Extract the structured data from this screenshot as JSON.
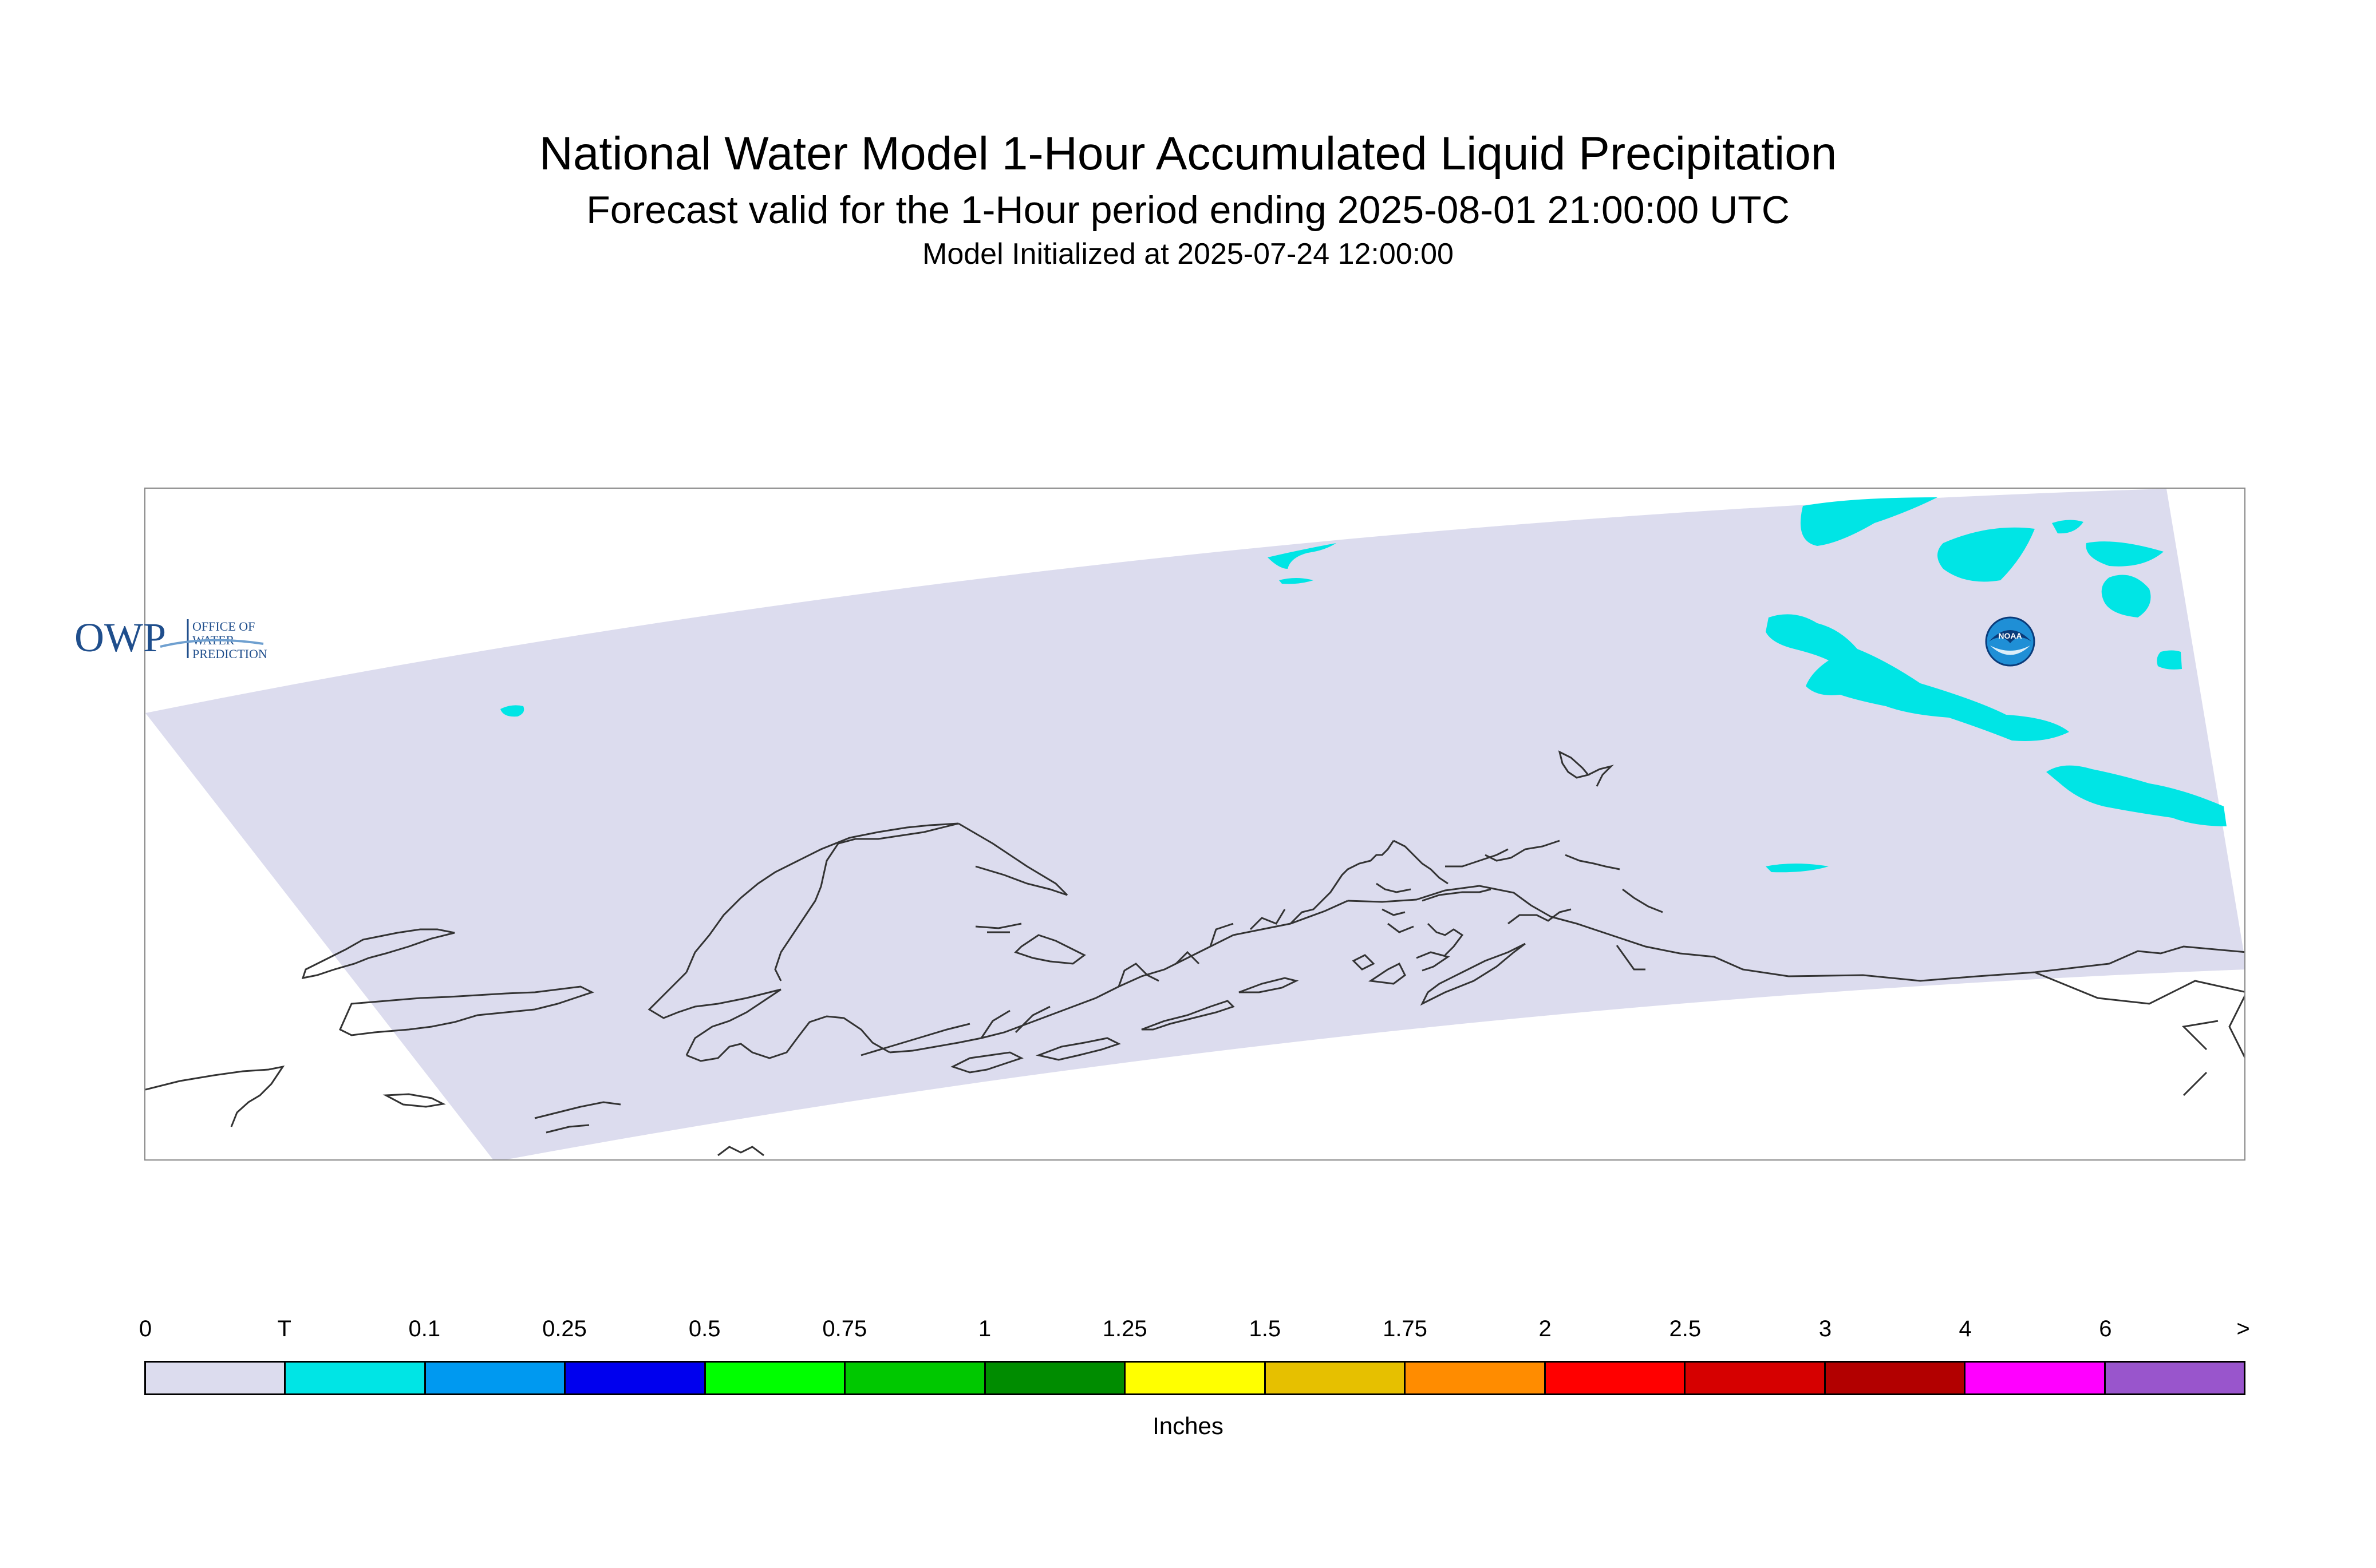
{
  "title": "National Water Model 1-Hour Accumulated Liquid Precipitation",
  "subtitle": "Forecast valid for the 1-Hour period ending 2025-08-01 21:00:00 UTC",
  "init_line": "Model Initialized at 2025-07-24 12:00:00",
  "map": {
    "region": "Alaska",
    "domain_fill": "#dcdcee",
    "coastline_color": "#333333",
    "precip_fill": "#00e5e5",
    "precip_category": "T"
  },
  "logos": {
    "owp": {
      "mark": "OWP",
      "line1": "OFFICE OF",
      "line2": "WATER",
      "line3": "PREDICTION"
    },
    "noaa": {
      "mark": "NOAA"
    }
  },
  "legend": {
    "labels": [
      "0",
      "T",
      "0.1",
      "0.25",
      "0.5",
      "0.75",
      "1",
      "1.25",
      "1.5",
      "1.75",
      "2",
      "2.5",
      "3",
      "4",
      "6",
      ">"
    ],
    "colors": [
      "#dcdcee",
      "#00e5e5",
      "#0099f0",
      "#0000ee",
      "#00ff00",
      "#00c800",
      "#008c00",
      "#ffff00",
      "#e6c000",
      "#ff8c00",
      "#ff0000",
      "#d60000",
      "#b20000",
      "#ff00ff",
      "#9955cc"
    ],
    "units": "Inches"
  }
}
